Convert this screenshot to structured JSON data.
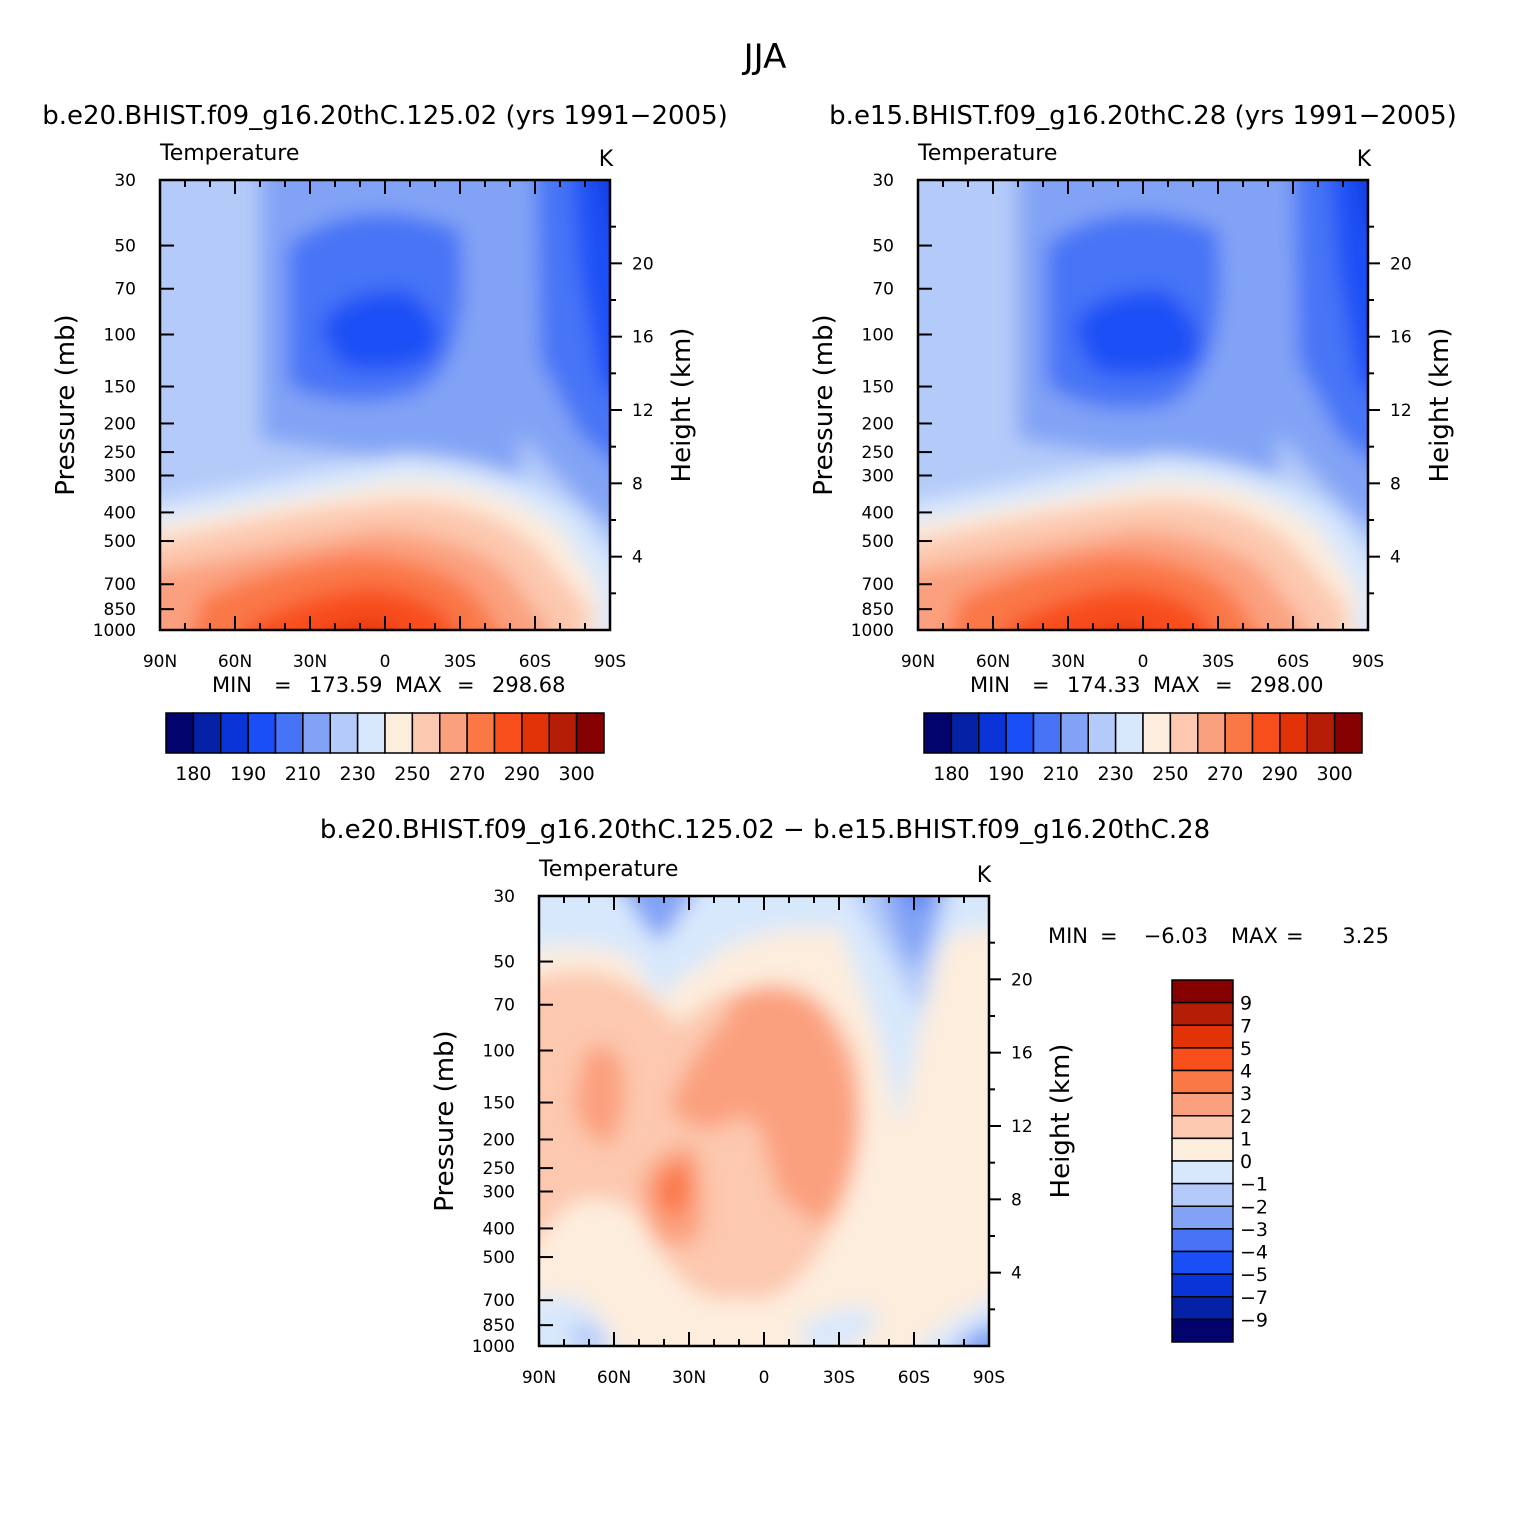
{
  "figure": {
    "title": "JJA"
  },
  "colors": {
    "abs_palette": [
      "#03036e",
      "#0521a6",
      "#0b34d8",
      "#1b4ff6",
      "#4774f6",
      "#82a3f5",
      "#b4cbf9",
      "#d8e8fc",
      "#fdeddd",
      "#fcc8af",
      "#fba07e",
      "#fa7746",
      "#f84e1c",
      "#e23207",
      "#b41e07",
      "#860202"
    ],
    "diff_palette": [
      "#03036e",
      "#0521a6",
      "#0b34d8",
      "#1b4ff6",
      "#4774f6",
      "#82a3f5",
      "#b4cbf9",
      "#d8e8fc",
      "#fdeddd",
      "#fcc8af",
      "#fba07e",
      "#fa7746",
      "#f84e1c",
      "#e23207",
      "#b41e07",
      "#860202"
    ]
  },
  "chart_data": [
    {
      "type": "heatmap",
      "id": "top-left",
      "title": "b.e20.BHIST.f09_g16.20thC.125.02 (yrs 1991-2005)",
      "left_string": "Temperature",
      "right_string": "K",
      "ylabel": "Pressure (mb)",
      "ylabel_right": "Height (km)",
      "x_ticks": [
        "90N",
        "60N",
        "30N",
        "0",
        "30S",
        "60S",
        "90S"
      ],
      "y_ticks": [
        "30",
        "50",
        "70",
        "100",
        "150",
        "200",
        "250",
        "300",
        "400",
        "500",
        "700",
        "850",
        "1000"
      ],
      "height_ticks": [
        "20",
        "16",
        "12",
        "8",
        "4"
      ],
      "xlim": [
        90,
        -90
      ],
      "ylim": [
        1000,
        30
      ],
      "min_label": "MIN",
      "min": "173.59",
      "max_label": "MAX",
      "max": "298.68",
      "colorbar": {
        "orientation": "horizontal",
        "labels": [
          "180",
          "190",
          "210",
          "230",
          "250",
          "270",
          "290",
          "300"
        ]
      }
    },
    {
      "type": "heatmap",
      "id": "top-right",
      "title": "b.e15.BHIST.f09_g16.20thC.28 (yrs 1991-2005)",
      "left_string": "Temperature",
      "right_string": "K",
      "ylabel": "Pressure (mb)",
      "ylabel_right": "Height (km)",
      "x_ticks": [
        "90N",
        "60N",
        "30N",
        "0",
        "30S",
        "60S",
        "90S"
      ],
      "y_ticks": [
        "30",
        "50",
        "70",
        "100",
        "150",
        "200",
        "250",
        "300",
        "400",
        "500",
        "700",
        "850",
        "1000"
      ],
      "height_ticks": [
        "20",
        "16",
        "12",
        "8",
        "4"
      ],
      "xlim": [
        90,
        -90
      ],
      "ylim": [
        1000,
        30
      ],
      "min_label": "MIN",
      "min": "174.33",
      "max_label": "MAX",
      "max": "298.00",
      "colorbar": {
        "orientation": "horizontal",
        "labels": [
          "180",
          "190",
          "210",
          "230",
          "250",
          "270",
          "290",
          "300"
        ]
      }
    },
    {
      "type": "heatmap",
      "id": "bottom-diff",
      "title": "b.e20.BHIST.f09_g16.20thC.125.02 - b.e15.BHIST.f09_g16.20thC.28",
      "left_string": "Temperature",
      "right_string": "K",
      "ylabel": "Pressure (mb)",
      "ylabel_right": "Height (km)",
      "x_ticks": [
        "90N",
        "60N",
        "30N",
        "0",
        "30S",
        "60S",
        "90S"
      ],
      "y_ticks": [
        "30",
        "50",
        "70",
        "100",
        "150",
        "200",
        "250",
        "300",
        "400",
        "500",
        "700",
        "850",
        "1000"
      ],
      "height_ticks": [
        "20",
        "16",
        "12",
        "8",
        "4"
      ],
      "xlim": [
        90,
        -90
      ],
      "ylim": [
        1000,
        30
      ],
      "min_label": "MIN",
      "min": "-6.03",
      "max_label": "MAX",
      "max": "3.25",
      "colorbar": {
        "orientation": "vertical",
        "labels": [
          "9",
          "7",
          "5",
          "4",
          "3",
          "2",
          "1",
          "0",
          "-1",
          "-2",
          "-3",
          "-4",
          "-5",
          "-7",
          "-9"
        ]
      }
    }
  ]
}
